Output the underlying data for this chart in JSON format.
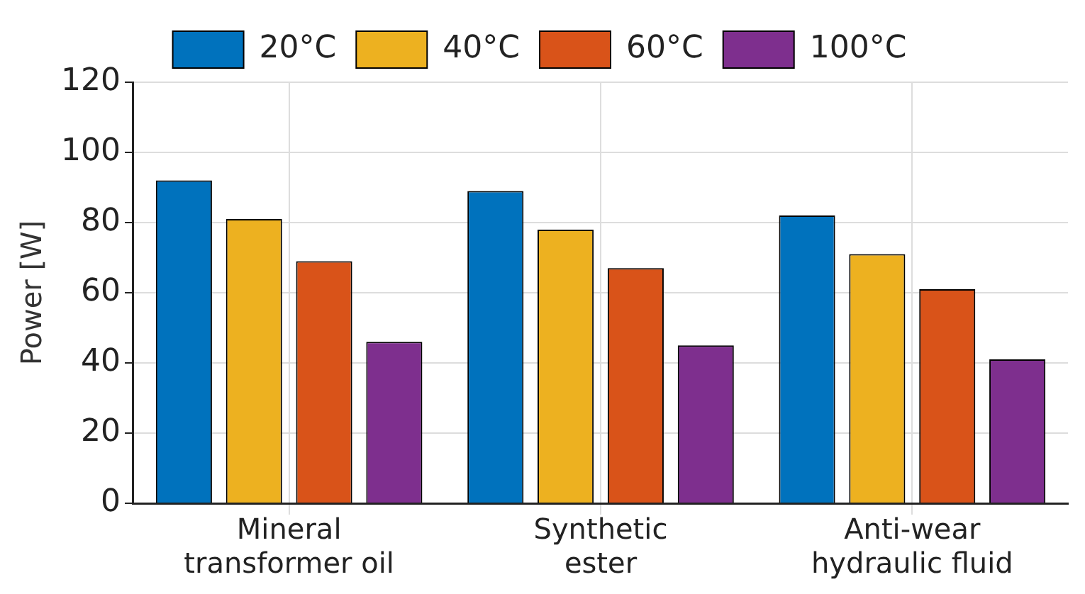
{
  "chart_data": {
    "type": "bar",
    "ylabel": "Power [W]",
    "categories": [
      "Mineral\ntransformer oil",
      "Synthetic\nester",
      "Anti-wear\nhydraulic fluid"
    ],
    "series": [
      {
        "name": "20°C",
        "color": "#0072bd",
        "values": [
          92,
          89,
          82
        ]
      },
      {
        "name": "40°C",
        "color": "#edb120",
        "values": [
          81,
          78,
          71
        ]
      },
      {
        "name": "60°C",
        "color": "#d95319",
        "values": [
          69,
          67,
          61
        ]
      },
      {
        "name": "100°C",
        "color": "#7e2f8e",
        "values": [
          46,
          45,
          41
        ]
      }
    ],
    "ylim": [
      0,
      120
    ],
    "yticks": [
      0,
      20,
      40,
      60,
      80,
      100,
      120
    ],
    "grid": true,
    "legend": "top"
  }
}
